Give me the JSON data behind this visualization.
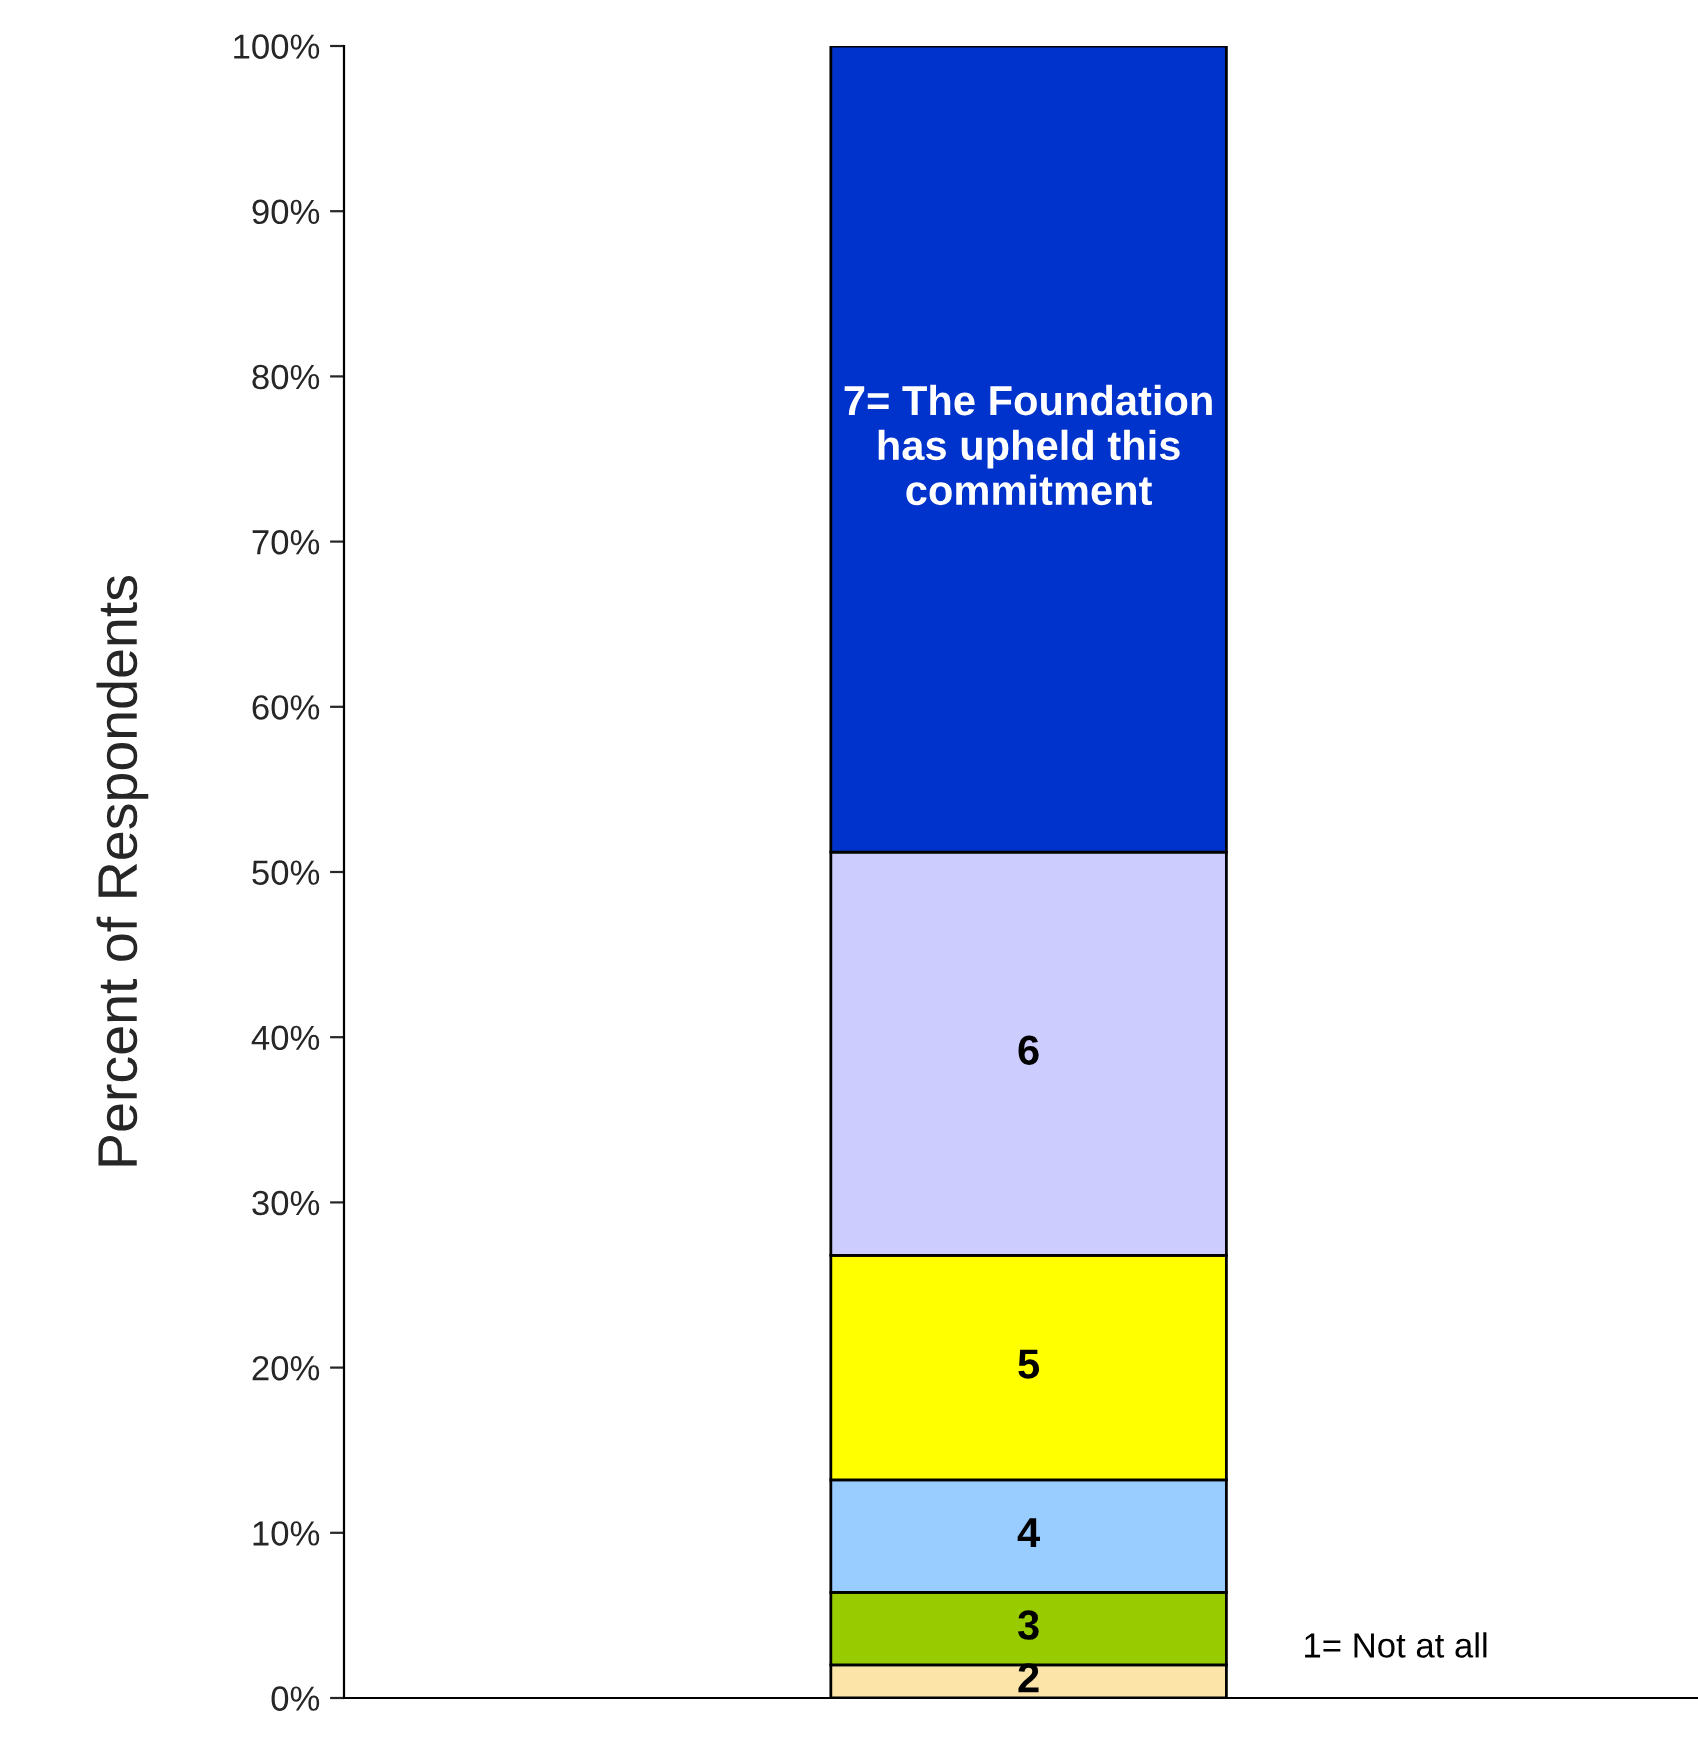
{
  "chart_data": {
    "type": "bar",
    "stacked": true,
    "ylabel": "Percent of Respondents",
    "categories": [
      null
    ],
    "series": [
      {
        "name": "1= Not at all",
        "values": [
          0
        ]
      },
      {
        "name": "2",
        "color": "#fce4a8",
        "values": [
          2.0
        ]
      },
      {
        "name": "3",
        "color": "#99cc00",
        "values": [
          4.4
        ]
      },
      {
        "name": "4",
        "color": "#99ccff",
        "values": [
          6.8
        ]
      },
      {
        "name": "5",
        "color": "#ffff00",
        "values": [
          13.6
        ]
      },
      {
        "name": "6",
        "color": "#ccccff",
        "values": [
          24.4
        ]
      },
      {
        "name": "7= The Foundation\nhas upheld this\ncommitment",
        "color": "#0033cc",
        "values": [
          48.8
        ]
      }
    ],
    "ylim": [
      0,
      100
    ],
    "yticks": [
      {
        "value": 0,
        "label": "0%"
      },
      {
        "value": 10,
        "label": "10%"
      },
      {
        "value": 20,
        "label": "20%"
      },
      {
        "value": 30,
        "label": "30%"
      },
      {
        "value": 40,
        "label": "40%"
      },
      {
        "value": 50,
        "label": "50%"
      },
      {
        "value": 60,
        "label": "60%"
      },
      {
        "value": 70,
        "label": "70%"
      },
      {
        "value": 80,
        "label": "80%"
      },
      {
        "value": 90,
        "label": "90%"
      },
      {
        "value": 100,
        "label": "100%"
      }
    ],
    "tick_labels": "y",
    "grid": false,
    "legend": false
  }
}
